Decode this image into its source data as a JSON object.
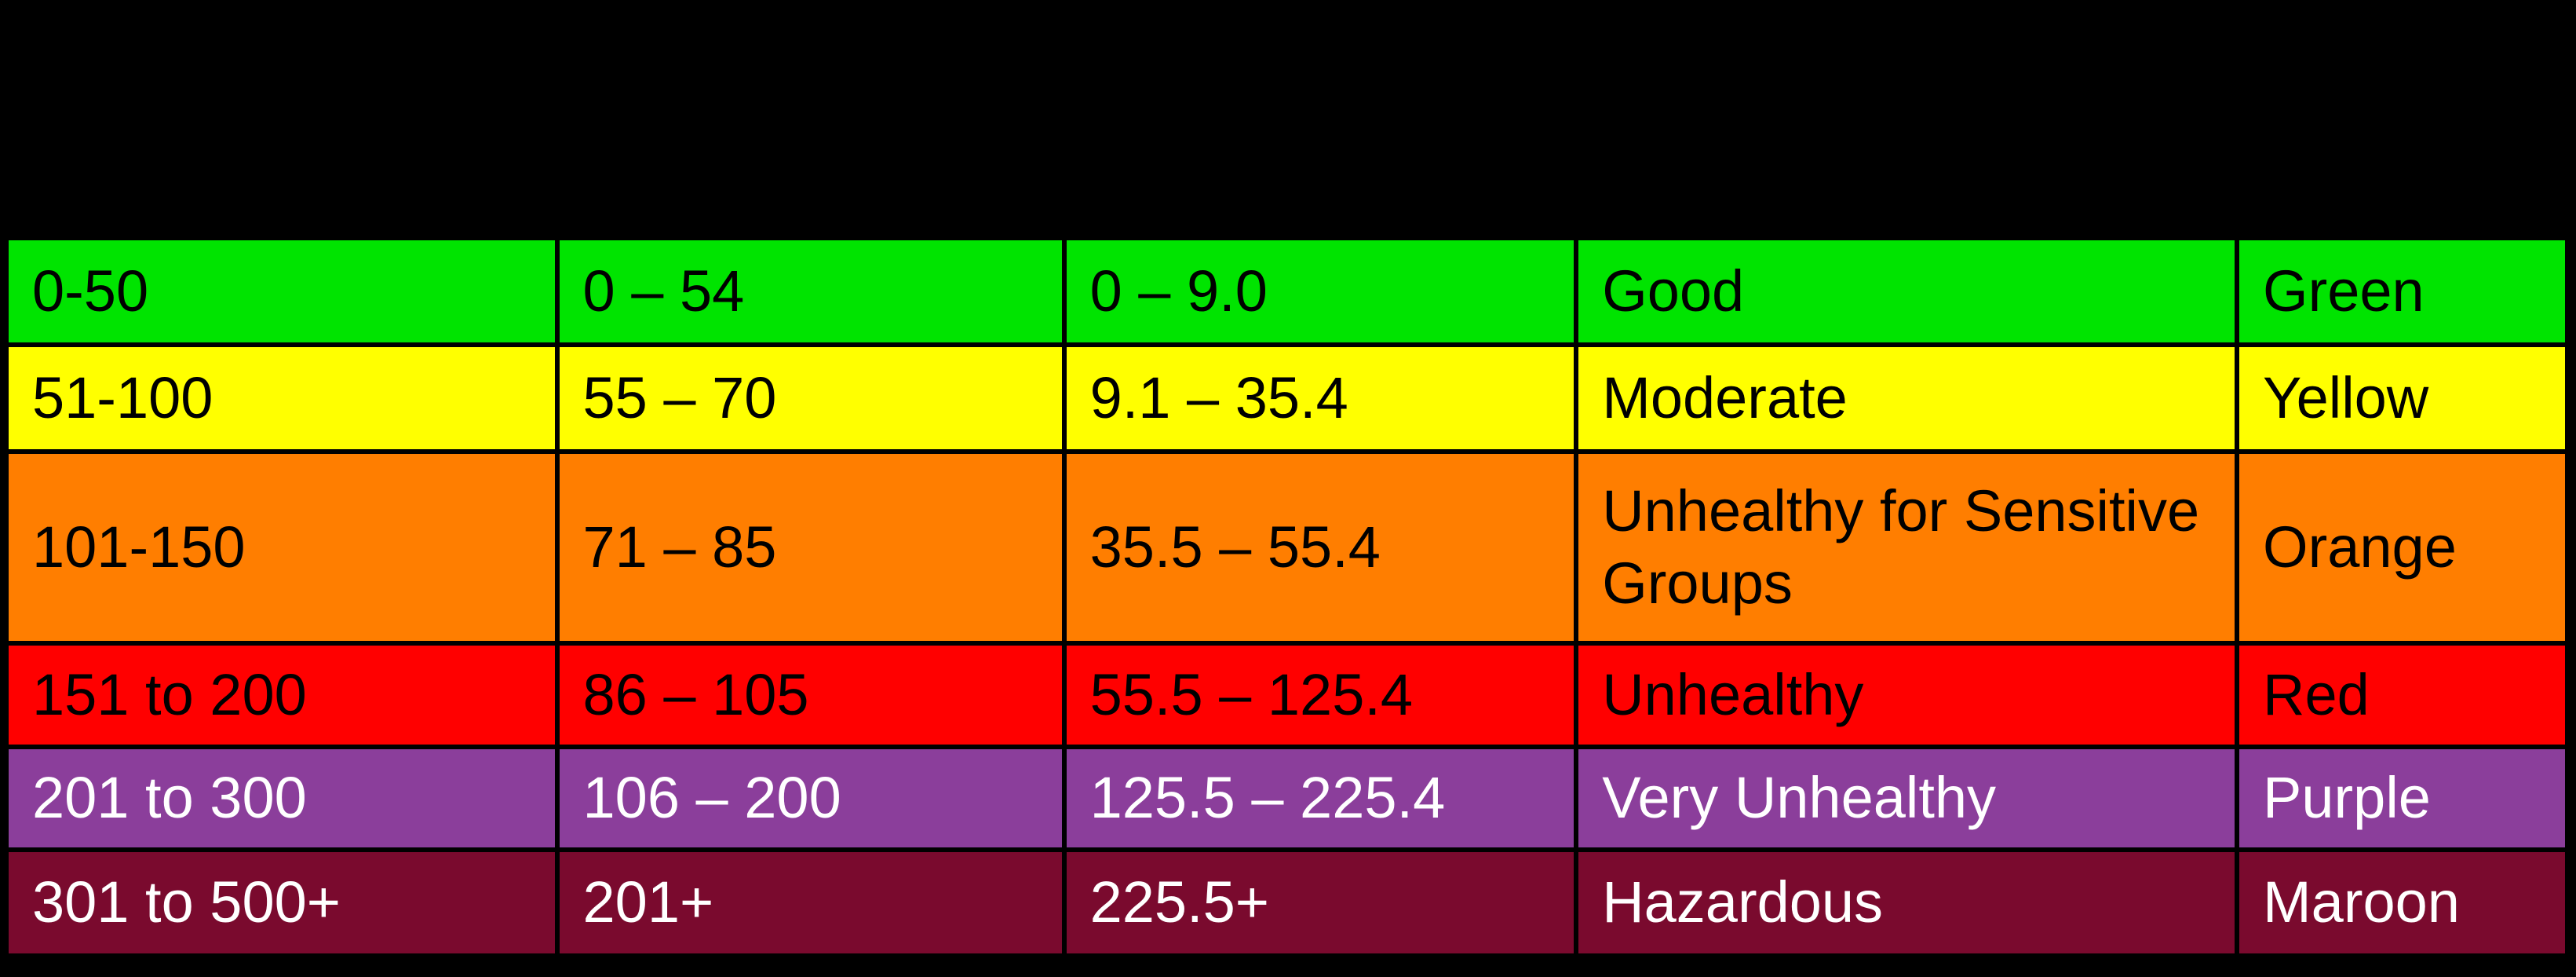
{
  "page": {
    "background_color": "#000000",
    "grid_border_color": "#000000"
  },
  "chart_data": {
    "type": "table",
    "rows": [
      [
        "0-50",
        "0 – 54",
        "0 – 9.0",
        "Good",
        "Green"
      ],
      [
        "51-100",
        "55 – 70",
        "9.1 – 35.4",
        "Moderate",
        "Yellow"
      ],
      [
        "101-150",
        "71 – 85",
        "35.5 – 55.4",
        "Unhealthy for Sensitive Groups",
        "Orange"
      ],
      [
        "151 to 200",
        "86 – 105",
        "55.5 – 125.4",
        "Unhealthy",
        "Red"
      ],
      [
        "201 to 300",
        "106 – 200",
        "125.5 – 225.4",
        "Very Unhealthy",
        "Purple"
      ],
      [
        "301 to 500+",
        "201+",
        "225.5+",
        "Hazardous",
        "Maroon"
      ]
    ],
    "row_background_colors": [
      "#00E400",
      "#FFFF00",
      "#FF7E00",
      "#FF0000",
      "#8B3E9B",
      "#7A0A2E"
    ],
    "row_text_colors": [
      "#000000",
      "#000000",
      "#000000",
      "#000000",
      "#FFFFFF",
      "#FFFFFF"
    ],
    "layout_hints": {
      "grid": true,
      "column_width_percents": [
        21.5,
        19.8,
        20.0,
        25.8,
        12.9
      ]
    }
  }
}
